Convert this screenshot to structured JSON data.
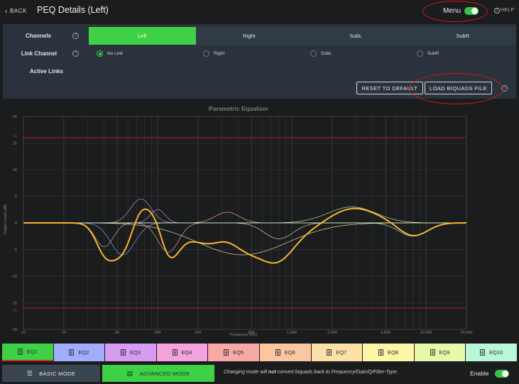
{
  "header": {
    "back_label": "BACK",
    "title": "PEQ Details (Left)",
    "menu_label": "Menu",
    "menu_toggle_on": true,
    "help_label": "HELP"
  },
  "panel": {
    "channels_label": "Channels",
    "channels": [
      {
        "label": "Left",
        "active": true
      },
      {
        "label": "Right",
        "active": false
      },
      {
        "label": "SubL",
        "active": false
      },
      {
        "label": "SubR",
        "active": false
      }
    ],
    "link_channel_label": "Link Channel",
    "link_options": [
      {
        "label": "No Link",
        "selected": true
      },
      {
        "label": "Right",
        "selected": false
      },
      {
        "label": "SubL",
        "selected": false
      },
      {
        "label": "SubR",
        "selected": false
      }
    ],
    "active_links_label": "Active Links",
    "reset_label": "RESET TO DEFAULT",
    "load_label": "LOAD BIQUADS FILE"
  },
  "chart_data": {
    "type": "line",
    "title": "Parametric Equalizer",
    "xlabel": "Frequency (Hz)",
    "ylabel": "Output Level (dB)",
    "x_scale": "log",
    "xlim": [
      10,
      20000
    ],
    "ylim": [
      -20,
      20
    ],
    "x_ticks": [
      "10",
      "20",
      "50",
      "100",
      "200",
      "500",
      "1,000",
      "2,000",
      "5,000",
      "10,000",
      "20,000"
    ],
    "y_ticks": [
      "20",
      "15",
      "10",
      "5",
      "0",
      "-5",
      "-10",
      "-15",
      "-20"
    ],
    "limit_lines": [
      {
        "y": 16,
        "label": "16",
        "color": "#9b1b1b"
      },
      {
        "y": -16,
        "label": "-16",
        "color": "#9b1b1b"
      }
    ],
    "grid": true,
    "filters": [
      {
        "f": 40,
        "gain": -4.5,
        "q": 4.0,
        "color": "#c7c7c7"
      },
      {
        "f": 55,
        "gain": -6.0,
        "q": 3.0,
        "color": "#9ba6ff"
      },
      {
        "f": 75,
        "gain": 4.5,
        "q": 3.5,
        "color": "#d79ae0"
      },
      {
        "f": 100,
        "gain": 2.5,
        "q": 5.0,
        "color": "#c8a0ff"
      },
      {
        "f": 120,
        "gain": -5.5,
        "q": 3.5,
        "color": "#f2a6c9"
      },
      {
        "f": 330,
        "gain": 2.0,
        "q": 3.0,
        "color": "#e8c9a0"
      },
      {
        "f": 430,
        "gain": -6.0,
        "q": 0.8,
        "color": "#f7f0a8"
      },
      {
        "f": 800,
        "gain": -3.0,
        "q": 2.5,
        "color": "#e6e6b0"
      },
      {
        "f": 2800,
        "gain": 3.0,
        "q": 1.5,
        "color": "#c8f0a8"
      },
      {
        "f": 8000,
        "gain": -2.5,
        "q": 2.5,
        "color": "#b8f0d8"
      }
    ],
    "total_color": "#f7b531"
  },
  "eq_tabs": [
    {
      "label": "EQ1",
      "color": "#3ed146",
      "active": true
    },
    {
      "label": "EQ2",
      "color": "#a3adff"
    },
    {
      "label": "EQ3",
      "color": "#d59cf2"
    },
    {
      "label": "EQ4",
      "color": "#f4a3dd"
    },
    {
      "label": "EQ5",
      "color": "#f7a9a5"
    },
    {
      "label": "EQ6",
      "color": "#fbc7a1"
    },
    {
      "label": "EQ7",
      "color": "#fde0a7"
    },
    {
      "label": "EQ8",
      "color": "#fbf7a7"
    },
    {
      "label": "EQ9",
      "color": "#e6f9a9"
    },
    {
      "label": "EQ10",
      "color": "#b9f7d8"
    }
  ],
  "bottom": {
    "basic_label": "BASIC MODE",
    "advanced_label": "ADVANCED MODE",
    "note_pre": "Changing mode will ",
    "note_bold": "not",
    "note_post": " convert biquads back to Frequency/Gain/Q/Filter-Type.",
    "enable_label": "Enable",
    "enable_on": true
  }
}
